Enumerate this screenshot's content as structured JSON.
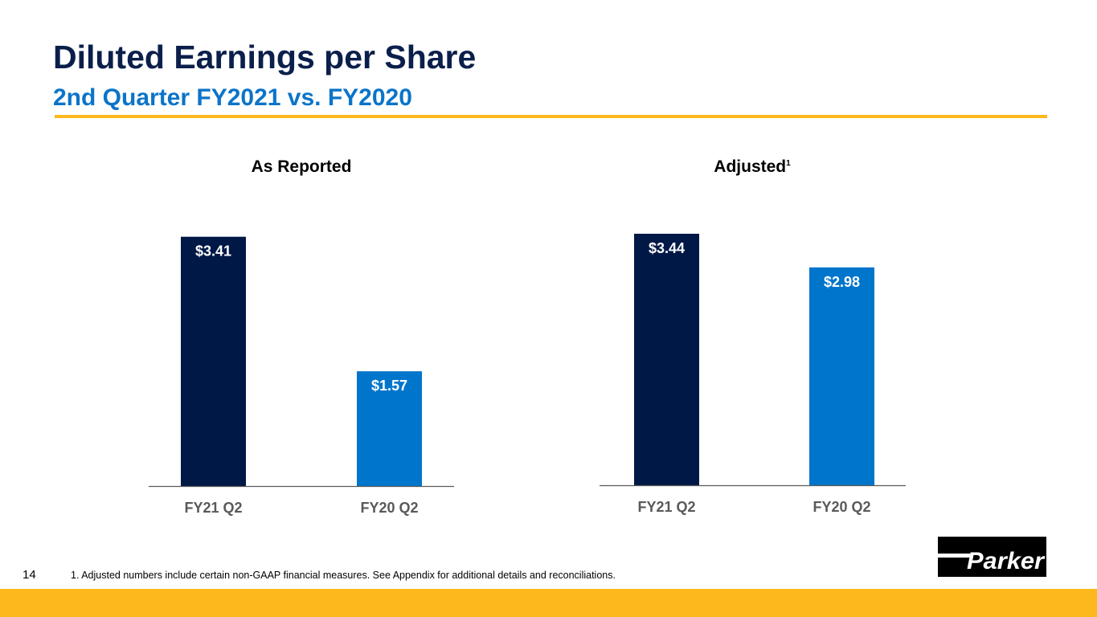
{
  "header": {
    "title": "Diluted Earnings per Share",
    "subtitle": "2nd Quarter FY2021 vs. FY2020"
  },
  "colors": {
    "navy": "#001846",
    "blue": "#0075cc",
    "accent": "#fdb81e"
  },
  "chart_data": [
    {
      "type": "bar",
      "title": "As Reported",
      "title_sup": "",
      "categories": [
        "FY21 Q2",
        "FY20 Q2"
      ],
      "values": [
        3.41,
        1.57
      ],
      "labels": [
        "$3.41",
        "$1.57"
      ],
      "ylim": [
        0,
        3.5
      ],
      "grid": false
    },
    {
      "type": "bar",
      "title": "Adjusted",
      "title_sup": "1",
      "categories": [
        "FY21 Q2",
        "FY20 Q2"
      ],
      "values": [
        3.44,
        2.98
      ],
      "labels": [
        "$3.44",
        "$2.98"
      ],
      "ylim": [
        0,
        3.5
      ],
      "grid": false
    }
  ],
  "footer": {
    "page_number": "14",
    "footnote": "1. Adjusted numbers include certain non-GAAP financial measures. See Appendix for additional details and reconciliations.",
    "logo_text": "Parker"
  }
}
